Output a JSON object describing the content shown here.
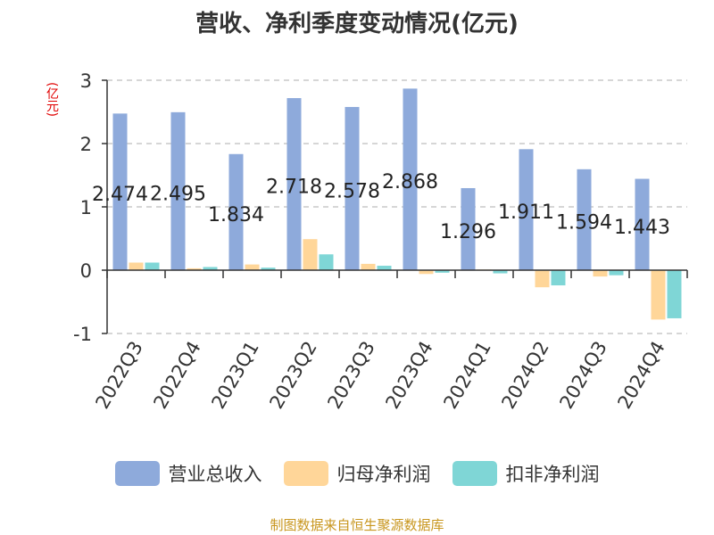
{
  "chart_data": {
    "type": "bar",
    "title": "营收、净利季度变动情况(亿元)",
    "unit_label": "(亿元)",
    "categories": [
      "2022Q3",
      "2022Q4",
      "2023Q1",
      "2023Q2",
      "2023Q3",
      "2023Q4",
      "2024Q1",
      "2024Q2",
      "2024Q3",
      "2024Q4"
    ],
    "series": [
      {
        "name": "营业总收入",
        "color": "#8eaadb",
        "values": [
          2.474,
          2.495,
          1.834,
          2.718,
          2.578,
          2.868,
          1.296,
          1.911,
          1.594,
          1.443
        ],
        "labels": [
          "2.474",
          "2.495",
          "1.834",
          "2.718",
          "2.578",
          "2.868",
          "1.296",
          "1.911",
          "1.594",
          "1.443"
        ]
      },
      {
        "name": "归母净利润",
        "color": "#ffd699",
        "values": [
          0.12,
          0.03,
          0.09,
          0.49,
          0.1,
          -0.06,
          0.01,
          -0.27,
          -0.1,
          -0.78
        ]
      },
      {
        "name": "扣非净利润",
        "color": "#7fd6d6",
        "values": [
          0.12,
          0.05,
          0.04,
          0.25,
          0.07,
          -0.04,
          -0.05,
          -0.24,
          -0.08,
          -0.76
        ]
      }
    ],
    "yticks": [
      3,
      2,
      1,
      0,
      -1
    ],
    "ylim": [
      -1,
      3
    ],
    "grid": true,
    "legend_position": "bottom"
  },
  "source_note": "制图数据来自恒生聚源数据库"
}
